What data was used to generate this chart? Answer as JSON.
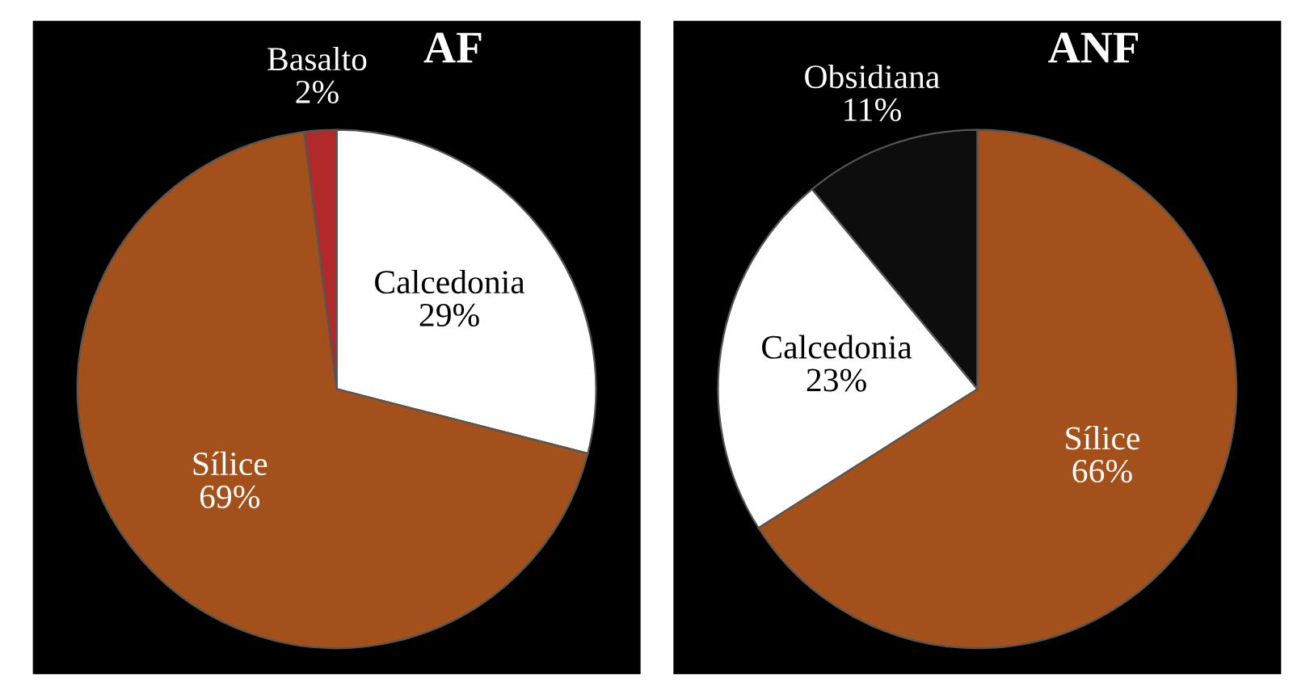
{
  "chart_data": [
    {
      "type": "pie",
      "title": "AF",
      "categories": [
        "Calcedonia",
        "Sílice",
        "Basalto"
      ],
      "values": [
        29,
        69,
        2
      ],
      "colors": [
        "#ffffff",
        "#a3501a",
        "#b02a2a"
      ],
      "value_labels": [
        "29%",
        "69%",
        "2%"
      ]
    },
    {
      "type": "pie",
      "title": "ANF",
      "categories": [
        "Sílice",
        "Calcedonia",
        "Obsidiana"
      ],
      "values": [
        66,
        23,
        11
      ],
      "colors": [
        "#a3501a",
        "#ffffff",
        "#0d0d0d"
      ],
      "value_labels": [
        "66%",
        "23%",
        "11%"
      ]
    }
  ]
}
